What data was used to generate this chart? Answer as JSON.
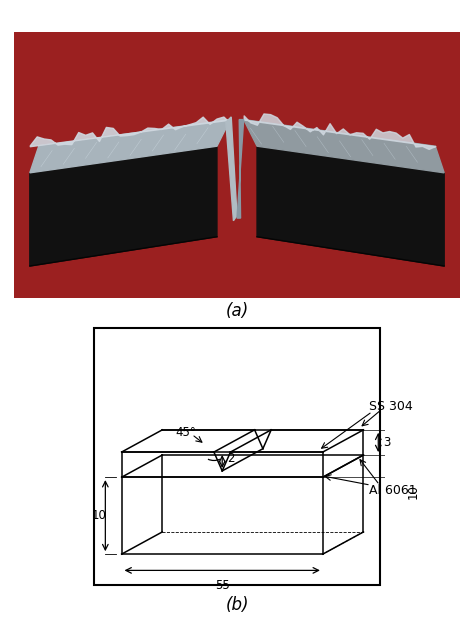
{
  "fig_width": 4.74,
  "fig_height": 6.34,
  "bg_color": "#ffffff",
  "label_a": "(a)",
  "label_b": "(b)",
  "dim_55": "55",
  "dim_10_bottom": "10",
  "dim_10_right": "10",
  "dim_3": "3",
  "dim_2": "2",
  "dim_45": "45°",
  "label_ss304": "SS 304",
  "label_al6061": "Al 6061",
  "photo_red": "#9b2020",
  "photo_dark": "#111111",
  "photo_silver_l": "#a8b4bc",
  "photo_silver_r": "#909aa0",
  "photo_notch": "#555555",
  "photo_edge_top": "#d0d8e0"
}
